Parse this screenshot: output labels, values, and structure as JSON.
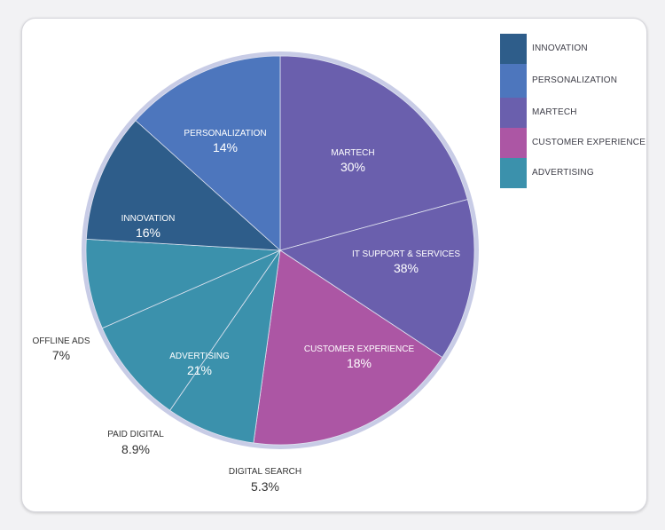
{
  "chart_data": {
    "type": "pie",
    "title": "",
    "slices": [
      {
        "name": "MARTECH",
        "label": "MARTECH",
        "value_text": "30%",
        "fraction": 0.2077,
        "color": "#6a5fad"
      },
      {
        "name": "IT SUPPORT & SERVICES",
        "label": "IT SUPPORT & SERVICES",
        "value_text": "38%",
        "fraction": 0.1349,
        "color": "#6a5fad"
      },
      {
        "name": "CUSTOMER EXPERIENCE",
        "label": "CUSTOMER EXPERIENCE",
        "value_text": "18%",
        "fraction": 0.1792,
        "color": "#ac56a4"
      },
      {
        "name": "DIGITAL SEARCH",
        "label": "DIGITAL SEARCH",
        "value_text": "5.3%",
        "fraction": 0.0741,
        "color": "#3b91ac"
      },
      {
        "name": "PAID DIGITAL",
        "label": "PAID DIGITAL",
        "value_text": "8.9%",
        "fraction": 0.0882,
        "color": "#3b91ac"
      },
      {
        "name": "ADVERTISING",
        "label": "ADVERTISING",
        "value_text": "21%",
        "fraction": 0.0,
        "color": "#3b91ac"
      },
      {
        "name": "OFFLINE ADS",
        "label": "OFFLINE ADS",
        "value_text": "7%",
        "fraction": 0.0748,
        "color": "#3b91ac"
      },
      {
        "name": "INNOVATION",
        "label": "INNOVATION",
        "value_text": "16%",
        "fraction": 0.1073,
        "color": "#2e5d8a"
      },
      {
        "name": "PERSONALIZATION",
        "label": "PERSONALIZATION",
        "value_text": "14%",
        "fraction": 0.1338,
        "color": "#4d76bd"
      }
    ],
    "legend": {
      "placement": "top-right",
      "items": [
        {
          "label": "INNOVATION",
          "color": "#2e5d8a"
        },
        {
          "label": "PERSONALIZATION",
          "color": "#4d76bd"
        },
        {
          "label": "MARTECH",
          "color": "#6a5fad"
        },
        {
          "label": "CUSTOMER EXPERIENCE",
          "color": "#ac56a4"
        },
        {
          "label": "ADVERTISING",
          "color": "#3b91ac"
        }
      ]
    },
    "ring_color": "#c8cce6"
  }
}
